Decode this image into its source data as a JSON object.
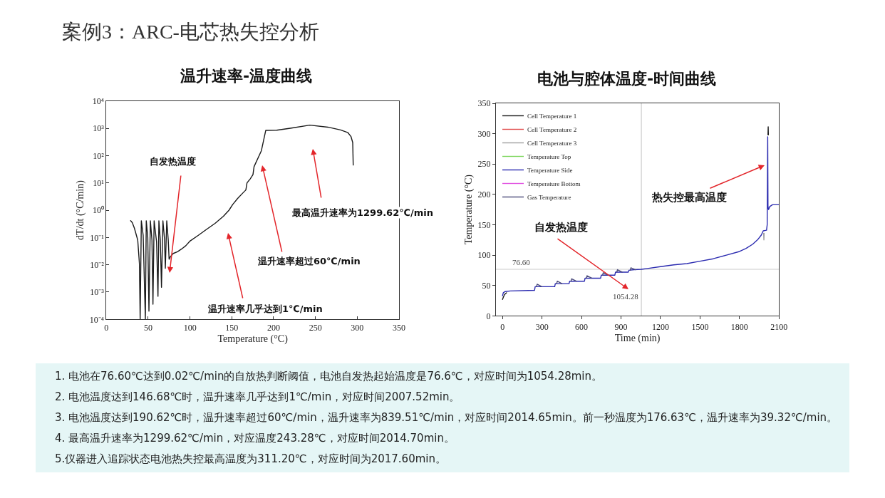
{
  "chart_data": [
    {
      "type": "other",
      "title": "案例3：ARC-电芯热失控分析"
    },
    {
      "type": "line",
      "title": "温升速率-温度曲线",
      "xlabel": "Temperature (°C)",
      "ylabel": "dT/dt (°C/min)",
      "log": "y",
      "xlim": [
        0,
        350
      ],
      "xticks": [
        0,
        50,
        100,
        150,
        200,
        250,
        300,
        350
      ],
      "ylim": [
        0.0001,
        10000
      ],
      "yticks": [
        {
          "value": 0.0001,
          "label": "10⁻⁴"
        },
        {
          "value": 0.001,
          "label": "10⁻³"
        },
        {
          "value": 0.01,
          "label": "10⁻²"
        },
        {
          "value": 0.1,
          "label": "10⁻¹"
        },
        {
          "value": 1,
          "label": "10⁰"
        },
        {
          "value": 10,
          "label": "10¹"
        },
        {
          "value": 100,
          "label": "10²"
        },
        {
          "value": 1000,
          "label": "10³"
        },
        {
          "value": 10000,
          "label": "10⁴"
        }
      ],
      "series": [
        {
          "color": "#1a1a1a",
          "x": [
            29,
            31,
            33.5,
            37.5,
            39.5,
            40.4,
            41.8,
            44,
            46.6,
            47.7,
            49.5,
            50.9,
            52.6,
            54.5,
            55.7,
            57.1,
            60,
            61.7,
            62.8,
            64.5,
            65.9,
            67.6,
            69.5,
            70.5,
            72.2,
            74,
            75,
            76.6,
            80,
            85,
            90,
            95,
            100,
            110,
            120,
            130,
            140,
            146.68,
            151,
            157,
            163,
            166.8,
            168.2,
            172,
            175.3,
            176.63,
            185.3,
            190.62,
            203.7,
            220,
            243.28,
            264.8,
            280,
            288.9,
            292.5,
            294.6,
            295.2
          ],
          "values": [
            0.41,
            0.35,
            0.22,
            0.08,
            0.011,
            0.0001,
            0.41,
            0.12,
            0.0001,
            0.41,
            0.1,
            0.0002,
            0.41,
            0.08,
            0.00036,
            0.41,
            0.07,
            0.0007,
            0.41,
            0.08,
            0.0015,
            0.41,
            0.09,
            0.0074,
            0.41,
            0.08,
            0.016,
            0.02,
            0.026,
            0.03,
            0.038,
            0.05,
            0.074,
            0.12,
            0.2,
            0.33,
            0.6,
            1,
            1.6,
            2.7,
            4.2,
            5.5,
            10,
            14,
            20,
            39.32,
            148,
            839.51,
            850,
            1000,
            1299.62,
            1100,
            870,
            690,
            500,
            300,
            45
          ]
        }
      ],
      "annotations": [
        "自发热温度",
        "温升速率几乎达到1℃/min",
        "温升速率超过60℃/min",
        "最高温升速率为1299.62℃/min"
      ]
    },
    {
      "type": "line",
      "title": "电池与腔体温度-时间曲线",
      "xlabel": "Time (min)",
      "ylabel": "Temperature (°C)",
      "legend": "top left",
      "xlim": [
        -50,
        2100
      ],
      "xticks": [
        0,
        300,
        600,
        900,
        1200,
        1500,
        1800,
        2100
      ],
      "ylim": [
        0,
        350
      ],
      "yticks": [
        0,
        50,
        100,
        150,
        200,
        250,
        300,
        350
      ],
      "ref_lines": [
        {
          "axis": "y",
          "value": 76.6,
          "label": "76.60",
          "color": "#cccccc"
        },
        {
          "axis": "x",
          "value": 1054.28,
          "label": "1054.28",
          "color": "#cccccc"
        }
      ],
      "series": [
        {
          "name": "Cell Temperature 1",
          "color": "#1c1c1c",
          "x": [
            0,
            5,
            15,
            30,
            1000,
            2016,
            2017.6,
            2019
          ],
          "values": [
            27,
            30,
            35,
            38,
            null,
            298,
            311.2,
            298
          ]
        },
        {
          "name": "Cell Temperature 2",
          "color": "#e04848"
        },
        {
          "name": "Cell Temperature 3",
          "color": "#a0a0a0",
          "x": [
            1983,
            1985,
            1987
          ],
          "values": [
            136,
            125,
            136
          ]
        },
        {
          "name": "Temperature Top",
          "color": "#7ad65a"
        },
        {
          "name": "Temperature Side",
          "color": "#2b2bb0",
          "x": [
            0,
            6,
            20,
            60,
            243,
            248,
            396,
            401,
            505,
            510,
            622,
            627,
            745,
            750,
            853,
            858,
            955,
            960,
            1000,
            1054.28,
            1100,
            1200,
            1300,
            1400,
            1500,
            1600,
            1700,
            1800,
            1850,
            1900,
            1940,
            1965,
            1980,
            2005,
            2010,
            2014,
            2016,
            2020,
            2030,
            2050,
            2100
          ],
          "values": [
            33,
            38,
            40,
            41,
            42,
            48,
            48,
            53,
            53,
            57,
            57,
            62,
            62,
            67,
            67,
            72,
            72,
            75,
            76,
            76.6,
            78,
            81,
            84,
            86,
            90,
            94,
            100,
            106,
            111,
            118,
            126,
            133,
            140,
            141,
            150,
            295,
            180,
            175,
            180,
            183,
            183
          ]
        },
        {
          "name": "Temperature Bottom",
          "color": "#e050e0"
        },
        {
          "name": "Gas Temperature",
          "color": "#4a4a7a",
          "x": [
            258,
            263,
            298,
            350,
            411,
            416,
            451,
            480,
            520,
            525,
            560,
            600,
            637,
            642,
            677,
            710,
            760,
            765,
            800,
            830,
            868,
            873,
            908,
            940,
            970,
            975,
            1010
          ],
          "values": [
            48,
            52,
            48,
            null,
            53,
            57,
            53,
            null,
            57,
            61,
            57,
            null,
            62,
            66,
            62,
            null,
            67,
            71,
            67,
            null,
            72,
            76,
            72,
            null,
            75,
            79,
            76
          ]
        }
      ],
      "annotations": [
        "自发热温度",
        {
          "text": "热失控最高温度",
          "x": 1990,
          "y": 248
        }
      ]
    },
    {
      "type": "other",
      "annotations": [
        "1. 电池在76.60℃达到0.02℃/min的自放热判断阈值，电池自发热起始温度是76.6℃，对应时间为1054.28min。",
        "2. 电池温度达到146.68℃时，温升速率几乎达到1℃/min，对应时间2007.52min。",
        "3. 电池温度达到190.62℃时，温升速率超过60℃/min，温升速率为839.51℃/min，对应时间2014.65min。前一秒温度为176.63℃，温升速率为39.32℃/min。",
        "4. 最高温升速率为1299.62℃/min，对应温度243.28℃，对应时间2014.70min。",
        "5.仪器进入追踪状态电池热失控最高温度为311.20℃，对应时间为2017.60min。"
      ]
    }
  ]
}
